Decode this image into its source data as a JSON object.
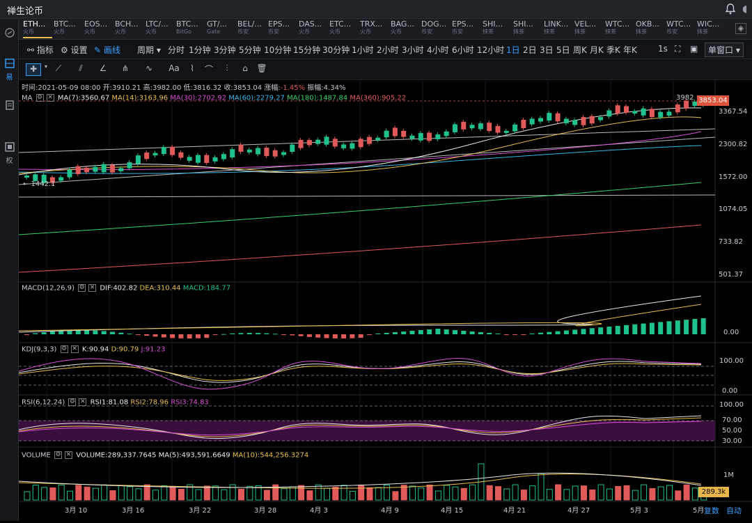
{
  "app": {
    "title": "禅生论币"
  },
  "tabs": [
    {
      "sym": "ETH...",
      "ex": "火币"
    },
    {
      "sym": "BTC...",
      "ex": "火币"
    },
    {
      "sym": "EOS...",
      "ex": "火币"
    },
    {
      "sym": "BCH...",
      "ex": "火币"
    },
    {
      "sym": "LTC/...",
      "ex": "火币"
    },
    {
      "sym": "BTC...",
      "ex": "BitGo"
    },
    {
      "sym": "GT/...",
      "ex": "Gate"
    },
    {
      "sym": "BEL/...",
      "ex": "币安"
    },
    {
      "sym": "EPS...",
      "ex": "币安"
    },
    {
      "sym": "DAS...",
      "ex": "火币"
    },
    {
      "sym": "ETC...",
      "ex": "火币"
    },
    {
      "sym": "TRX...",
      "ex": "火币"
    },
    {
      "sym": "BAG...",
      "ex": "火币"
    },
    {
      "sym": "DOG...",
      "ex": "币安"
    },
    {
      "sym": "EPS...",
      "ex": "币安"
    },
    {
      "sym": "SHI...",
      "ex": "抹茶"
    },
    {
      "sym": "SHI...",
      "ex": "抹茶"
    },
    {
      "sym": "LINK...",
      "ex": "抹茶"
    },
    {
      "sym": "VEL...",
      "ex": "抹茶"
    },
    {
      "sym": "WTC...",
      "ex": "抹茶"
    },
    {
      "sym": "OKB...",
      "ex": "抹茶"
    },
    {
      "sym": "WTC...",
      "ex": "币安"
    },
    {
      "sym": "WIC...",
      "ex": "抹茶"
    }
  ],
  "toolbar": {
    "indicator": "指标",
    "settings": "设置",
    "draw": "画线",
    "period": "周期",
    "periods": [
      "分时",
      "1分钟",
      "3分钟",
      "5分钟",
      "10分钟",
      "15分钟",
      "30分钟",
      "1小时",
      "2小时",
      "3小时",
      "4小时",
      "6小时",
      "12小时",
      "1日",
      "2日",
      "3日",
      "5日",
      "周K",
      "月K",
      "季K",
      "年K"
    ],
    "selected_period": "1日",
    "seconds": "1s",
    "window": "单窗口"
  },
  "leftbar": [
    "易",
    "",
    "权"
  ],
  "info": {
    "time": "时间:2021-05-09 08:00",
    "open": "开:3910.21",
    "high": "高:3982.00",
    "low": "低:3816.32",
    "close": "收:3853.04",
    "change_label": "涨幅:",
    "change": "-1.45%",
    "amp": "振幅:4.34%"
  },
  "ma_legend": {
    "name": "MA",
    "ma7": "MA(7):3560.67",
    "ma14": "MA(14):3163.96",
    "ma30": "MA(30):2702.92",
    "ma60": "MA(60):2279.27",
    "ma180": "MA(180):1487.84",
    "ma360": "MA(360):905.22"
  },
  "macd_legend": {
    "name": "MACD(12,26,9)",
    "dif": "DIF:402.82",
    "dea": "DEA:310.44",
    "macd": "MACD:184.77"
  },
  "kdj_legend": {
    "name": "KDJ(9,3,3)",
    "k": "K:90.94",
    "d": "D:90.79",
    "j": "J:91.23"
  },
  "rsi_legend": {
    "name": "RSI(6,12,24)",
    "r1": "RSI1:81.08",
    "r2": "RSI2:78.96",
    "r3": "RSI3:74.83"
  },
  "vol_legend": {
    "name": "VOLUME",
    "v": "VOLUME:289,337.7645",
    "ma5": "MA(5):493,591.6649",
    "ma10": "MA(10):544,256.3274"
  },
  "price_axis": [
    "3367.54",
    "2300.82",
    "1572.00",
    "1074.05",
    "733.82",
    "501.37"
  ],
  "current_price": "3853.04",
  "high_mark": "3982",
  "low_mark": "← 1442.1",
  "macd_axis": [
    "0.00"
  ],
  "kdj_axis": [
    "100.00",
    "0.00"
  ],
  "rsi_axis": [
    "100.00",
    "70.00",
    "50.00",
    "30.00"
  ],
  "vol_axis": [
    "1M"
  ],
  "vol_tag": "289.3k",
  "x_labels": [
    "3月 10",
    "3月 16",
    "3月 22",
    "3月 28",
    "4月 3",
    "4月 9",
    "4月 15",
    "4月 21",
    "4月 27",
    "5月 3",
    "5月"
  ],
  "bottom": {
    "review": "复数",
    "auto": "自动"
  },
  "colors": {
    "up": "#1fc18e",
    "down": "#e05a5a"
  }
}
